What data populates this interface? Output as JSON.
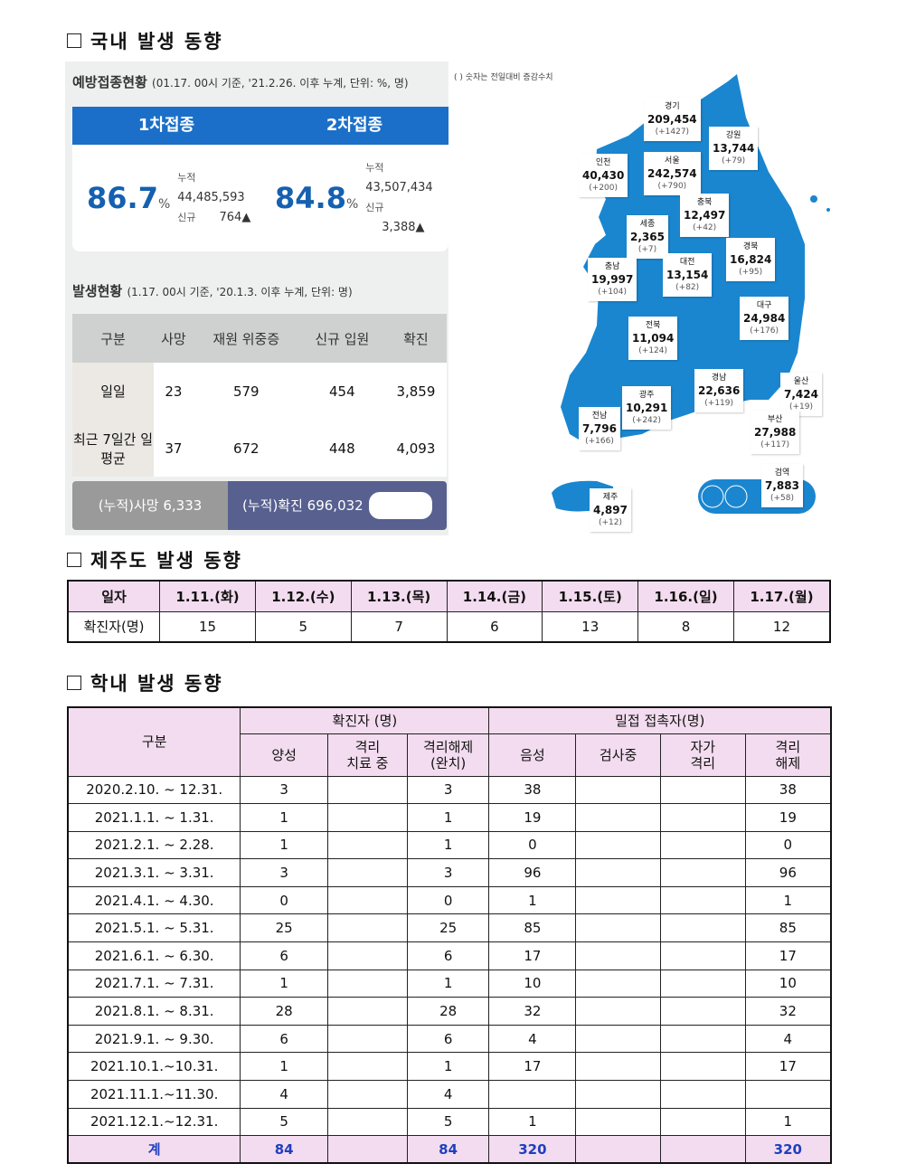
{
  "sections": {
    "domestic": "국내 발생 동향",
    "jeju": "제주도 발생 동향",
    "school": "학내 발생 동향"
  },
  "vaccination": {
    "title": "예방접종현황",
    "subtitle": "(01.17. 00시 기준, '21.2.26. 이후 누계, 단위: %, 명)",
    "doses": [
      {
        "label": "1차접종",
        "pct": "86.7",
        "unit": "%",
        "cum_label": "누적",
        "cum": "44,485,593",
        "new_label": "신규",
        "new": "764▲"
      },
      {
        "label": "2차접종",
        "pct": "84.8",
        "unit": "%",
        "cum_label": "누적",
        "cum": "43,507,434",
        "new_label": "신규",
        "new": "3,388▲"
      }
    ]
  },
  "occurrence": {
    "title": "발생현황",
    "subtitle": "(1.17. 00시 기준, '20.1.3. 이후 누계, 단위: 명)",
    "headers": [
      "구분",
      "사망",
      "재원 위중증",
      "신규 입원",
      "확진"
    ],
    "rows": [
      [
        "일일",
        "23",
        "579",
        "454",
        "3,859"
      ],
      [
        "최근 7일간 일평균",
        "37",
        "672",
        "448",
        "4,093"
      ]
    ],
    "cum_death": "(누적)사망  6,333",
    "cum_confirmed": "(누적)확진  696,032"
  },
  "map": {
    "note": "( ) 숫자는 전일대비 증감수치",
    "map_color": "#1a86d0",
    "regions": [
      {
        "name": "경기",
        "total": "209,454",
        "delta": "(+1427)"
      },
      {
        "name": "강원",
        "total": "13,744",
        "delta": "(+79)"
      },
      {
        "name": "인천",
        "total": "40,430",
        "delta": "(+200)"
      },
      {
        "name": "서울",
        "total": "242,574",
        "delta": "(+790)"
      },
      {
        "name": "충북",
        "total": "12,497",
        "delta": "(+42)"
      },
      {
        "name": "세종",
        "total": "2,365",
        "delta": "(+7)"
      },
      {
        "name": "충남",
        "total": "19,997",
        "delta": "(+104)"
      },
      {
        "name": "대전",
        "total": "13,154",
        "delta": "(+82)"
      },
      {
        "name": "경북",
        "total": "16,824",
        "delta": "(+95)"
      },
      {
        "name": "대구",
        "total": "24,984",
        "delta": "(+176)"
      },
      {
        "name": "전북",
        "total": "11,094",
        "delta": "(+124)"
      },
      {
        "name": "경남",
        "total": "22,636",
        "delta": "(+119)"
      },
      {
        "name": "울산",
        "total": "7,424",
        "delta": "(+19)"
      },
      {
        "name": "광주",
        "total": "10,291",
        "delta": "(+242)"
      },
      {
        "name": "전남",
        "total": "7,796",
        "delta": "(+166)"
      },
      {
        "name": "부산",
        "total": "27,988",
        "delta": "(+117)"
      },
      {
        "name": "검역",
        "total": "7,883",
        "delta": "(+58)"
      },
      {
        "name": "제주",
        "total": "4,897",
        "delta": "(+12)"
      }
    ]
  },
  "jeju_table": {
    "headers": [
      "일자",
      "1.11.(화)",
      "1.12.(수)",
      "1.13.(목)",
      "1.14.(금)",
      "1.15.(토)",
      "1.16.(일)",
      "1.17.(월)"
    ],
    "row": [
      "확진자(명)",
      "15",
      "5",
      "7",
      "6",
      "13",
      "8",
      "12"
    ]
  },
  "school_table": {
    "col0": "구분",
    "group1": "확진자 (명)",
    "group2": "밀접 접촉자(명)",
    "sub": [
      "양성",
      "격리 치료 중",
      "격리해제 (완치)",
      "음성",
      "검사중",
      "자가 격리",
      "격리 해제"
    ],
    "rows": [
      [
        "2020.2.10. ~ 12.31.",
        "3",
        "",
        "3",
        "38",
        "",
        "",
        "38"
      ],
      [
        "2021.1.1. ~ 1.31.",
        "1",
        "",
        "1",
        "19",
        "",
        "",
        "19"
      ],
      [
        "2021.2.1. ~ 2.28.",
        "1",
        "",
        "1",
        "0",
        "",
        "",
        "0"
      ],
      [
        "2021.3.1. ~ 3.31.",
        "3",
        "",
        "3",
        "96",
        "",
        "",
        "96"
      ],
      [
        "2021.4.1. ~ 4.30.",
        "0",
        "",
        "0",
        "1",
        "",
        "",
        "1"
      ],
      [
        "2021.5.1. ~ 5.31.",
        "25",
        "",
        "25",
        "85",
        "",
        "",
        "85"
      ],
      [
        "2021.6.1. ~ 6.30.",
        "6",
        "",
        "6",
        "17",
        "",
        "",
        "17"
      ],
      [
        "2021.7.1. ~ 7.31.",
        "1",
        "",
        "1",
        "10",
        "",
        "",
        "10"
      ],
      [
        "2021.8.1. ~ 8.31.",
        "28",
        "",
        "28",
        "32",
        "",
        "",
        "32"
      ],
      [
        "2021.9.1. ~ 9.30.",
        "6",
        "",
        "6",
        "4",
        "",
        "",
        "4"
      ],
      [
        "2021.10.1.~10.31.",
        "1",
        "",
        "1",
        "17",
        "",
        "",
        "17"
      ],
      [
        "2021.11.1.~11.30.",
        "4",
        "",
        "4",
        "",
        "",
        "",
        ""
      ],
      [
        "2021.12.1.~12.31.",
        "5",
        "",
        "5",
        "1",
        "",
        "",
        "1"
      ]
    ],
    "total": [
      "계",
      "84",
      "",
      "84",
      "320",
      "",
      "",
      "320"
    ]
  }
}
